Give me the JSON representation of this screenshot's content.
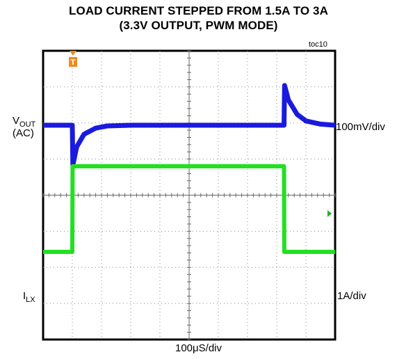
{
  "title_line1": "LOAD CURRENT STEPPED FROM 1.5A TO 3A",
  "title_line2": "(3.3V OUTPUT, PWM MODE)",
  "figure_tag": "toc10",
  "trigger_marker": "T",
  "channels": [
    {
      "label_main": "V",
      "label_sub": "OUT",
      "label_extra": "(AC)",
      "scale": "100mV/div",
      "color": "#1a1adf"
    },
    {
      "label_main": "I",
      "label_sub": "LX",
      "scale": "1A/div",
      "color": "#22e022"
    }
  ],
  "time_scale": "100μS/div",
  "chart_data": {
    "type": "line",
    "xlabel": "100μS/div",
    "x_divisions": 10,
    "y_divisions": 8,
    "x_unit": "μs",
    "grid": true,
    "series": [
      {
        "channel": "V_OUT (AC)",
        "unit": "mV",
        "points": [
          [
            0,
            0
          ],
          [
            100,
            0
          ],
          [
            102,
            -110
          ],
          [
            115,
            -60
          ],
          [
            140,
            -25
          ],
          [
            180,
            -8
          ],
          [
            220,
            -2
          ],
          [
            300,
            0
          ],
          [
            500,
            0
          ],
          [
            825,
            0
          ],
          [
            827,
            110
          ],
          [
            840,
            70
          ],
          [
            870,
            30
          ],
          [
            900,
            12
          ],
          [
            950,
            3
          ],
          [
            1000,
            0
          ]
        ]
      },
      {
        "channel": "I_LX",
        "unit": "A",
        "points": [
          [
            0,
            1.5
          ],
          [
            100,
            1.5
          ],
          [
            101,
            3.0
          ],
          [
            825,
            3.0
          ],
          [
            826,
            1.5
          ],
          [
            1000,
            1.5
          ]
        ]
      }
    ],
    "markers": [
      {
        "type": "trigger",
        "label": "T",
        "x": 100
      }
    ]
  }
}
